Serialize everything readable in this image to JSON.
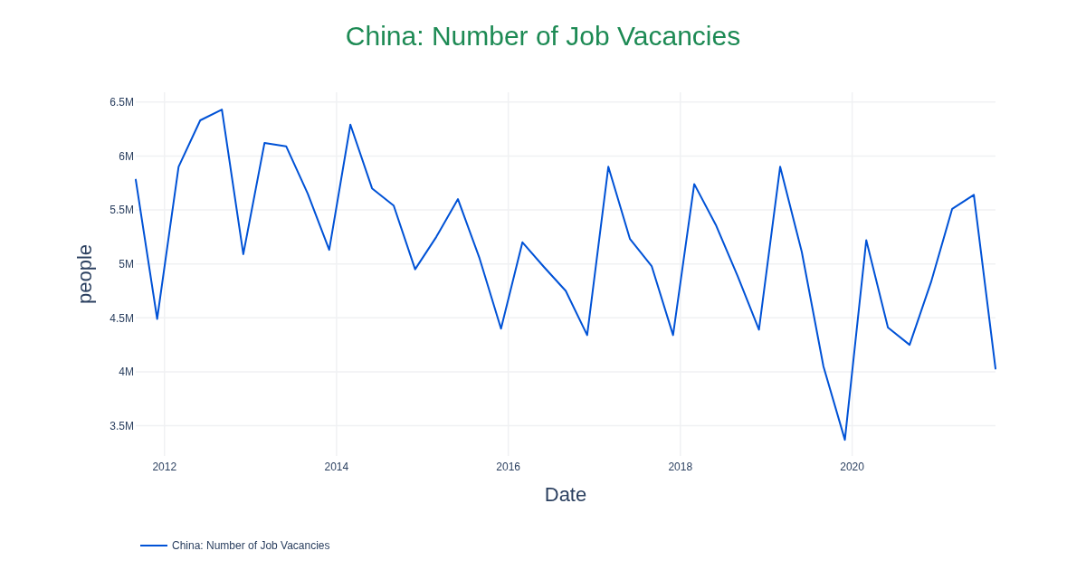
{
  "chart_data": {
    "type": "line",
    "title": "China: Number of Job Vacancies",
    "xlabel": "Date",
    "ylabel": "people",
    "x": [
      "2011-09",
      "2011-12",
      "2012-03",
      "2012-06",
      "2012-09",
      "2012-12",
      "2013-03",
      "2013-06",
      "2013-09",
      "2013-12",
      "2014-03",
      "2014-06",
      "2014-09",
      "2014-12",
      "2015-03",
      "2015-06",
      "2015-09",
      "2015-12",
      "2016-03",
      "2016-06",
      "2016-09",
      "2016-12",
      "2017-03",
      "2017-06",
      "2017-09",
      "2017-12",
      "2018-03",
      "2018-06",
      "2018-09",
      "2018-12",
      "2019-03",
      "2019-06",
      "2019-09",
      "2019-12",
      "2020-03",
      "2020-06",
      "2020-09",
      "2020-12",
      "2021-03",
      "2021-06",
      "2021-09"
    ],
    "series": [
      {
        "name": "China: Number of Job Vacancies",
        "color": "#0052d6",
        "values": [
          5780000,
          4490000,
          5900000,
          6330000,
          6430000,
          5090000,
          6120000,
          6090000,
          5650000,
          5130000,
          6290000,
          5700000,
          5540000,
          4950000,
          5250000,
          5600000,
          5050000,
          4400000,
          5200000,
          4970000,
          4750000,
          4340000,
          5900000,
          5230000,
          4980000,
          4340000,
          5740000,
          5360000,
          4890000,
          4390000,
          5900000,
          5110000,
          4050000,
          3370000,
          5220000,
          4410000,
          4250000,
          4830000,
          5510000,
          5640000,
          4030000
        ]
      }
    ],
    "xlim": [
      "2011-09",
      "2021-09"
    ],
    "xticks": [
      "2012",
      "2014",
      "2016",
      "2018",
      "2020"
    ],
    "ylim": [
      3220000,
      6590000
    ],
    "yticks": [
      {
        "value": 3500000,
        "label": "3.5M"
      },
      {
        "value": 4000000,
        "label": "4M"
      },
      {
        "value": 4500000,
        "label": "4.5M"
      },
      {
        "value": 5000000,
        "label": "5M"
      },
      {
        "value": 5500000,
        "label": "5.5M"
      },
      {
        "value": 6000000,
        "label": "6M"
      },
      {
        "value": 6500000,
        "label": "6.5M"
      }
    ],
    "grid": true,
    "legend": "bottom left"
  }
}
